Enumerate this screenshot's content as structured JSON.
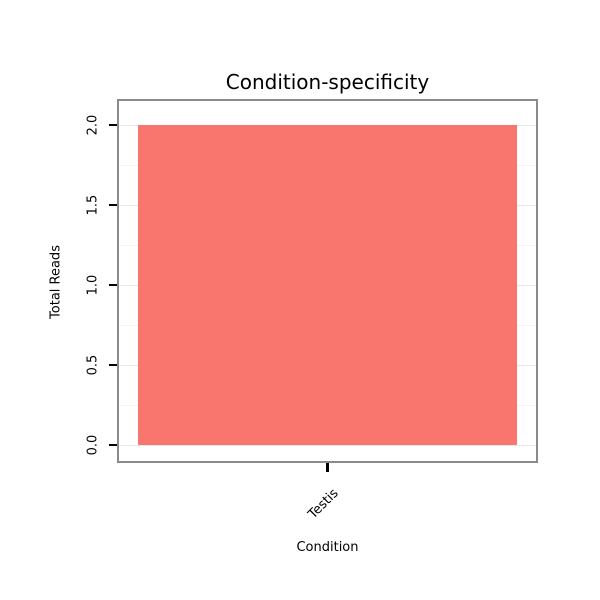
{
  "chart_data": {
    "type": "bar",
    "title": "Condition-specificity",
    "xlabel": "Condition",
    "ylabel": "Total Reads",
    "categories": [
      "Testis"
    ],
    "values": [
      2.0
    ],
    "ylim": [
      0,
      2
    ],
    "yticks": [
      "0.0",
      "0.5",
      "1.0",
      "1.5",
      "2.0"
    ],
    "bar_color": "#F8766D",
    "panel_border_color": "#8A8A8A",
    "gridline_major_color": "#E9E9E9",
    "gridline_minor_color": "#F5F5F5",
    "grid": true,
    "legend_position": "none"
  }
}
